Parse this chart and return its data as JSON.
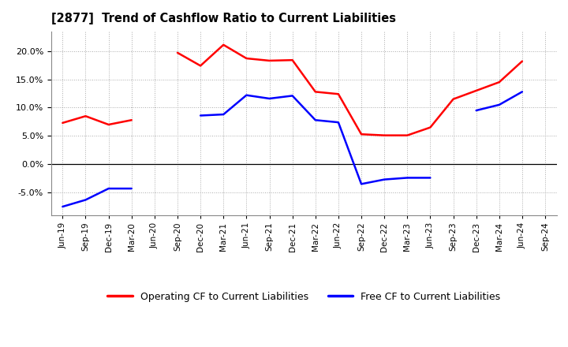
{
  "title": "[2877]  Trend of Cashflow Ratio to Current Liabilities",
  "x_labels": [
    "Jun-19",
    "Sep-19",
    "Dec-19",
    "Mar-20",
    "Jun-20",
    "Sep-20",
    "Dec-20",
    "Mar-21",
    "Jun-21",
    "Sep-21",
    "Dec-21",
    "Mar-22",
    "Jun-22",
    "Sep-22",
    "Dec-22",
    "Mar-23",
    "Jun-23",
    "Sep-23",
    "Dec-23",
    "Mar-24",
    "Jun-24",
    "Sep-24"
  ],
  "operating_cf": [
    7.3,
    8.5,
    7.0,
    7.8,
    null,
    19.7,
    17.4,
    21.1,
    18.7,
    18.3,
    18.4,
    12.8,
    12.4,
    5.3,
    5.1,
    5.1,
    6.5,
    11.5,
    13.0,
    14.5,
    18.2,
    null
  ],
  "free_cf": [
    -7.5,
    -6.3,
    -4.3,
    -4.3,
    null,
    null,
    8.6,
    8.8,
    12.2,
    11.6,
    12.1,
    7.8,
    7.4,
    -3.5,
    -2.7,
    -2.4,
    -2.4,
    null,
    9.5,
    10.5,
    12.8,
    null
  ],
  "operating_color": "#FF0000",
  "free_color": "#0000FF",
  "ylim": [
    -9.0,
    23.5
  ],
  "yticks": [
    -5.0,
    0.0,
    5.0,
    10.0,
    15.0,
    20.0
  ],
  "background_color": "#FFFFFF",
  "grid_color": "#AAAAAA",
  "legend_op": "Operating CF to Current Liabilities",
  "legend_free": "Free CF to Current Liabilities"
}
